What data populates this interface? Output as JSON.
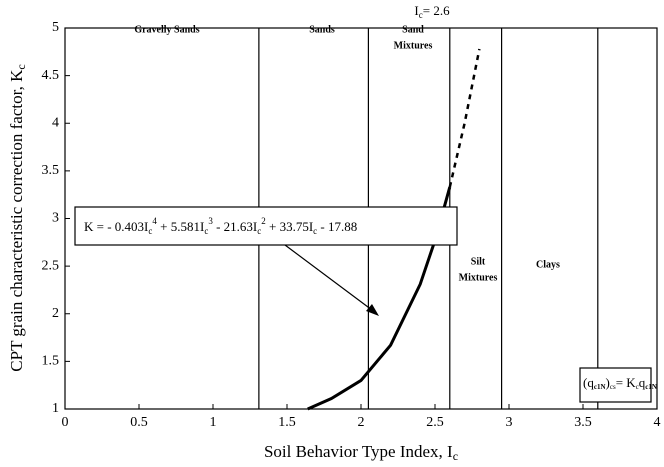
{
  "chart_data": {
    "type": "line",
    "x_label": [
      "Soil Behavior Type Index, I",
      "c"
    ],
    "y_label": [
      "CPT grain characteristic correction factor, K",
      "c"
    ],
    "xlim": [
      0,
      4
    ],
    "ylim": [
      1,
      5
    ],
    "xticks": [
      0,
      0.5,
      1,
      1.5,
      2,
      2.5,
      3,
      3.5,
      4
    ],
    "yticks": [
      1,
      1.5,
      2,
      2.5,
      3,
      3.5,
      4,
      4.5,
      5
    ],
    "series": [
      {
        "color": "#000000",
        "style": "solid",
        "x": [
          1.64,
          1.8,
          2.0,
          2.2,
          2.4,
          2.5,
          2.6
        ],
        "values": [
          1,
          1.11,
          1.3,
          1.67,
          2.31,
          2.77,
          3.33
        ]
      },
      {
        "color": "#000000",
        "style": "dashed",
        "x": [
          2.6,
          2.7,
          2.8
        ],
        "values": [
          3.33,
          4.0,
          4.78
        ]
      }
    ],
    "zone_boundaries": [
      1.31,
      2.05,
      2.6,
      2.95,
      3.6
    ],
    "zones": [
      [
        "Gravelly Sands"
      ],
      [
        "Sands"
      ],
      [
        "Sand",
        "Mixtures"
      ],
      [
        "Silt",
        "Mixtures"
      ],
      [
        "Clays"
      ]
    ],
    "annotations": {
      "boundary_label": [
        "I",
        "c",
        "= 2.6"
      ],
      "equation": [
        "K = - 0.403I",
        "c",
        "4",
        " + 5.581I",
        "c",
        "3",
        " - 21.63I",
        "c",
        "2",
        " + 33.75I",
        "c",
        " - 17.88"
      ],
      "formula": [
        "(q",
        "c1N",
        ")",
        "cs",
        "= K",
        "c",
        "q",
        "c1N"
      ]
    }
  }
}
